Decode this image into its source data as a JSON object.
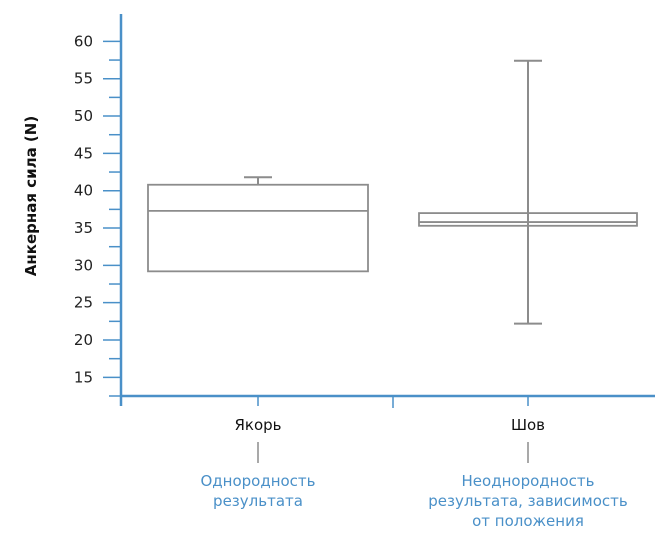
{
  "chart_data": {
    "type": "boxplot",
    "title": "",
    "xlabel": "",
    "ylabel": "Анкерная сила (N)",
    "ylim": [
      12.5,
      63
    ],
    "yticks": [
      15,
      20,
      25,
      30,
      35,
      40,
      45,
      50,
      55,
      60
    ],
    "grid": false,
    "categories": [
      "Якорь",
      "Шов"
    ],
    "notes": [
      [
        "Однородность",
        "результата"
      ],
      [
        "Неоднородность",
        "результата, зависимость",
        "от положения"
      ]
    ],
    "boxes": [
      {
        "category": "Якорь",
        "whisker_low": 29.2,
        "q1": 29.2,
        "median": 37.3,
        "q3": 40.8,
        "whisker_high": 41.8
      },
      {
        "category": "Шов",
        "whisker_low": 22.2,
        "q1": 35.3,
        "median": 35.8,
        "q3": 37.0,
        "whisker_high": 57.4
      }
    ]
  },
  "colors": {
    "axis": "#4a90c8",
    "box": "#8c8c8c",
    "note": "#4a90c8",
    "connector": "#8c8c8c"
  }
}
